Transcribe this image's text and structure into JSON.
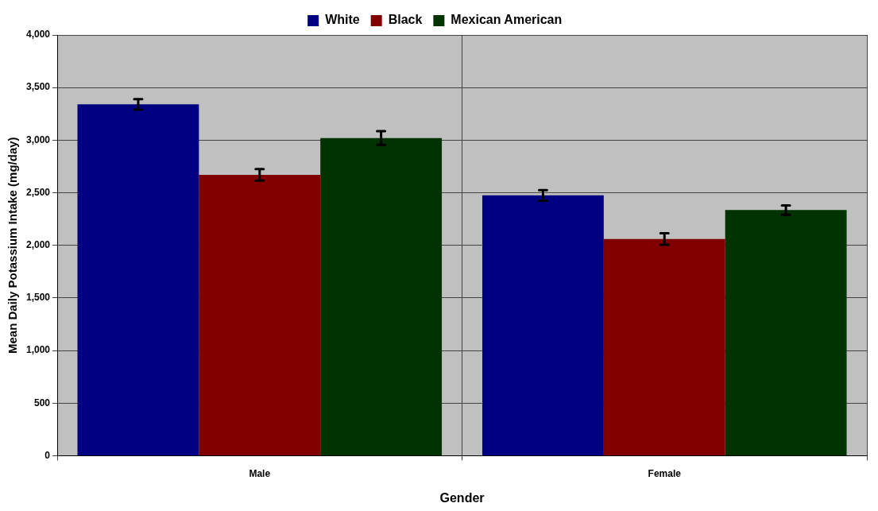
{
  "chart_data": {
    "type": "bar",
    "xlabel": "Gender",
    "ylabel": "Mean Daily Potassium Intake (mg/day)",
    "categories": [
      "Male",
      "Female"
    ],
    "series": [
      {
        "name": "White",
        "color": "#000080",
        "values": [
          3340,
          2475
        ],
        "errors": [
          50,
          50
        ]
      },
      {
        "name": "Black",
        "color": "#800000",
        "values": [
          2670,
          2060
        ],
        "errors": [
          55,
          55
        ]
      },
      {
        "name": "Mexican American",
        "color": "#003300",
        "values": [
          3020,
          2335
        ],
        "errors": [
          65,
          45
        ]
      }
    ],
    "ylim": [
      0,
      4000
    ],
    "yticks": [
      {
        "value": 0,
        "label": "0"
      },
      {
        "value": 500,
        "label": "500"
      },
      {
        "value": 1000,
        "label": "1,000"
      },
      {
        "value": 1500,
        "label": "1,500"
      },
      {
        "value": 2000,
        "label": "2,000"
      },
      {
        "value": 2500,
        "label": "2,500"
      },
      {
        "value": 3000,
        "label": "3,000"
      },
      {
        "value": 3500,
        "label": "3,500"
      },
      {
        "value": 4000,
        "label": "4,000"
      }
    ],
    "grid": true,
    "legend": "top"
  }
}
